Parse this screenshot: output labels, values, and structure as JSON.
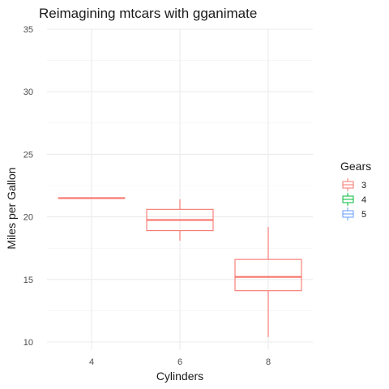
{
  "chart_data": {
    "type": "boxplot",
    "title": "Reimagining mtcars with gganimate",
    "xlabel": "Cylinders",
    "ylabel": "Miles per Gallon",
    "categories": [
      "4",
      "6",
      "8"
    ],
    "yticks": [
      10,
      15,
      20,
      25,
      30,
      35
    ],
    "ylim": [
      10,
      35
    ],
    "grid": true,
    "legend": {
      "title": "Gears",
      "position": "right",
      "entries": [
        {
          "label": "3",
          "color": "#F8766D"
        },
        {
          "label": "4",
          "color": "#00BA38"
        },
        {
          "label": "5",
          "color": "#619CFF"
        }
      ]
    },
    "series": [
      {
        "name": "3",
        "color": "#F8766D",
        "boxes": [
          {
            "category": "4",
            "min": 21.5,
            "q1": 21.5,
            "median": 21.5,
            "q3": 21.5,
            "max": 21.5
          },
          {
            "category": "6",
            "min": 18.1,
            "q1": 18.9,
            "median": 19.75,
            "q3": 20.6,
            "max": 21.4
          },
          {
            "category": "8",
            "min": 10.4,
            "q1": 14.1,
            "median": 15.2,
            "q3": 16.6,
            "max": 19.2
          }
        ]
      }
    ]
  }
}
